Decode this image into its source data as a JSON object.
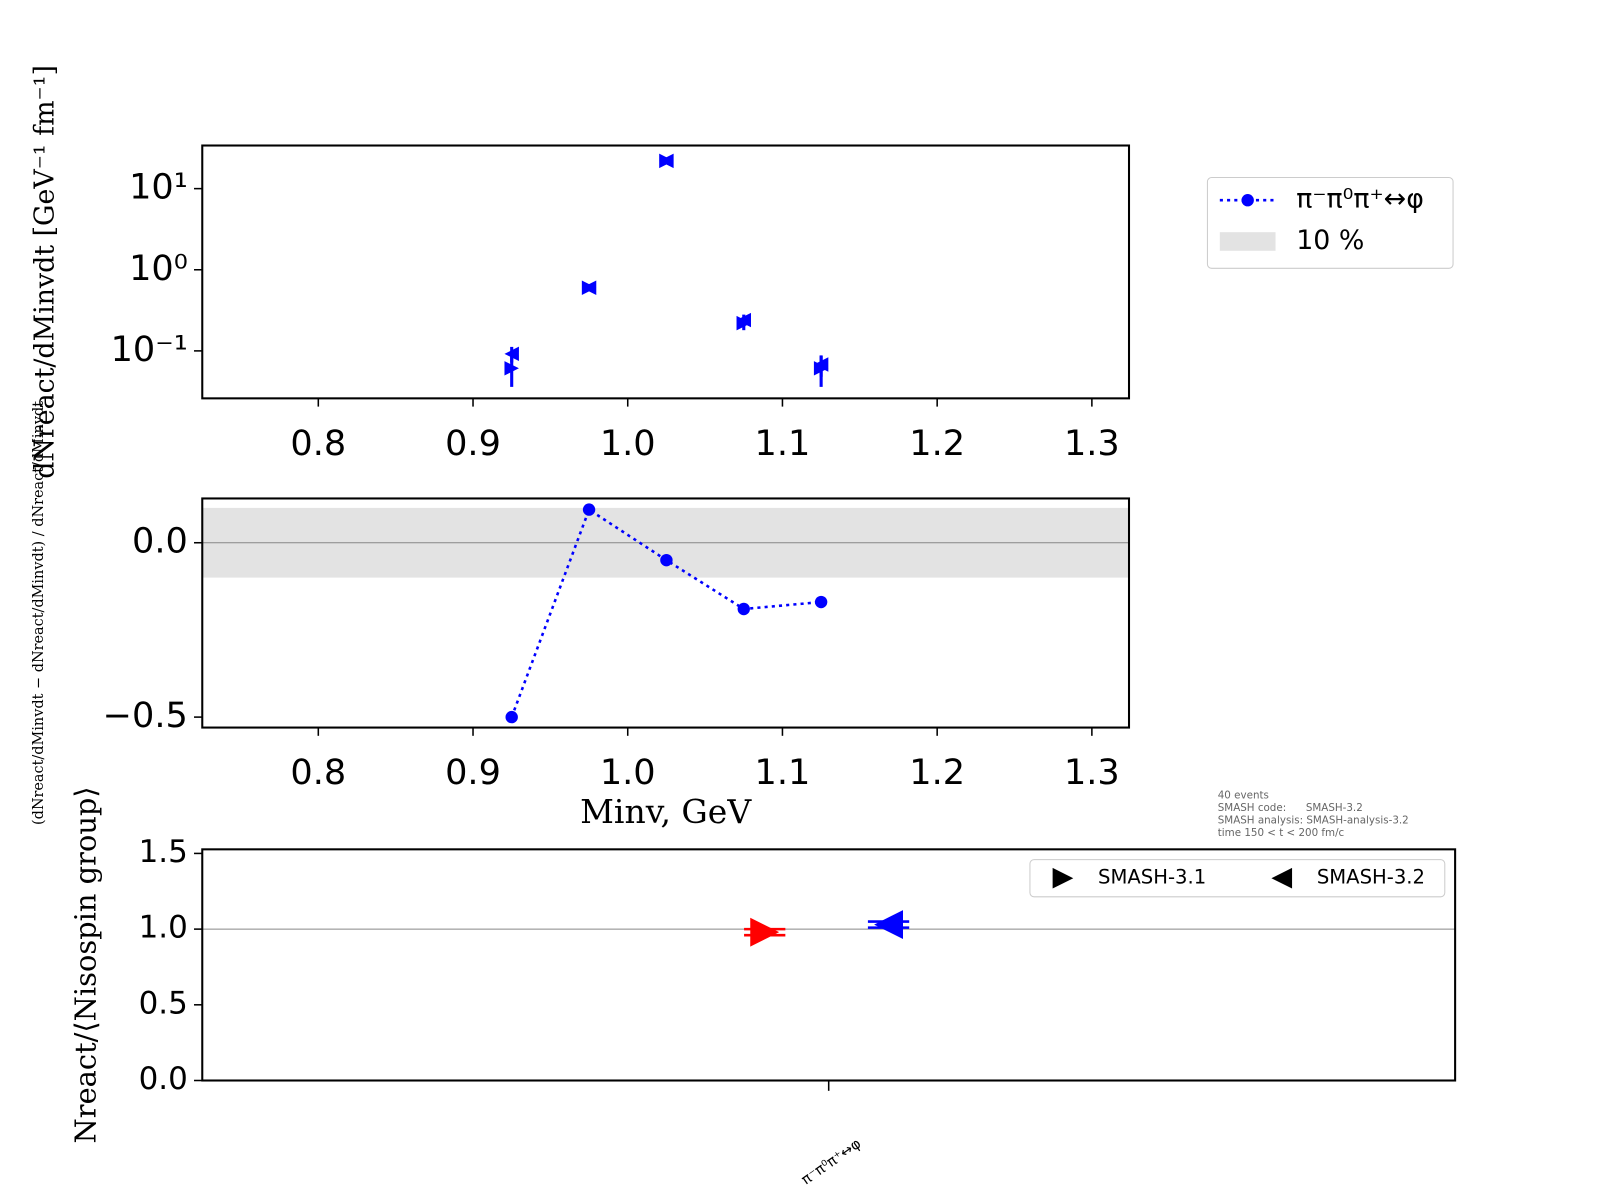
{
  "chart_data": [
    {
      "type": "scatter",
      "log_y": true,
      "ylabel": "dNreact/dMinvdt [GeV⁻¹ fm⁻¹]",
      "x": [
        0.925,
        0.975,
        1.025,
        1.075,
        1.125
      ],
      "series": [
        {
          "color": "#0000ff",
          "marker": "triangle-right",
          "values": [
            0.061,
            0.6,
            22,
            0.22,
            0.061
          ],
          "errors": [
            0.025,
            0.05,
            1.5,
            0.04,
            0.025
          ]
        },
        {
          "color": "#0000ff",
          "marker": "triangle-left",
          "values": [
            0.092,
            0.6,
            22,
            0.24,
            0.068
          ],
          "errors": [
            0.02,
            0.05,
            1.5,
            0.04,
            0.02
          ]
        }
      ],
      "xlim": [
        0.725,
        1.324
      ],
      "xticks": [
        0.8,
        0.9,
        {
          "value": 1.0,
          "label": "1.0"
        },
        1.1,
        1.2,
        1.3
      ],
      "ylim": [
        0.026,
        34
      ],
      "yticks": [
        {
          "value": 10,
          "label": "10¹"
        },
        {
          "value": 1,
          "label": "10⁰"
        },
        {
          "value": 0.1,
          "label": "10⁻¹"
        }
      ]
    },
    {
      "type": "line",
      "ylabel": "(dNreact/dMinvdt − dNreact/dMinvdt) / dNreact/dMinvdt",
      "xlabel": "Minv, GeV",
      "x": [
        0.925,
        0.975,
        1.025,
        1.075,
        1.125
      ],
      "series": [
        {
          "name": "π⁻π⁰π⁺↔φ",
          "color": "#0000ff",
          "values": [
            -0.5,
            0.095,
            -0.05,
            -0.19,
            -0.17
          ]
        }
      ],
      "band": {
        "name": "10 %",
        "lower": -0.1,
        "upper": 0.1,
        "color": "#e3e3e3"
      },
      "hline": 0,
      "legend": "outside-right",
      "xlim": [
        0.725,
        1.324
      ],
      "xticks": [
        0.8,
        0.9,
        {
          "value": 1.0,
          "label": "1.0"
        },
        1.1,
        1.2,
        1.3
      ],
      "ylim": [
        -0.53,
        0.127
      ],
      "yticks": [
        {
          "value": -0.5,
          "label": "−0.5"
        },
        {
          "value": 0,
          "label": "0.0"
        }
      ]
    },
    {
      "type": "scatter",
      "ylabel": "Nreact/⟨Nisospin group⟩",
      "categories": [
        "π⁻π⁰π⁺↔φ"
      ],
      "series": [
        {
          "name": "SMASH-3.1",
          "color": "#ff0000",
          "marker": "triangle-right",
          "values": [
            0.98
          ],
          "errors": [
            0.02
          ]
        },
        {
          "name": "SMASH-3.2",
          "color": "#0000ff",
          "marker": "triangle-left",
          "values": [
            1.03
          ],
          "errors": [
            0.02
          ]
        }
      ],
      "hline": 1,
      "legend": "upper right",
      "annotation": [
        "40 events",
        "SMASH code:      SMASH-3.2",
        "SMASH analysis: SMASH-analysis-3.2",
        "time 150 < t < 200 fm/c"
      ],
      "ylim": [
        0,
        1.527
      ],
      "yticks": [
        {
          "value": 0,
          "label": "0.0"
        },
        {
          "value": 0.5,
          "label": "0.5"
        },
        {
          "value": 1,
          "label": "1.0"
        },
        {
          "value": 1.5,
          "label": "1.5"
        }
      ]
    }
  ]
}
